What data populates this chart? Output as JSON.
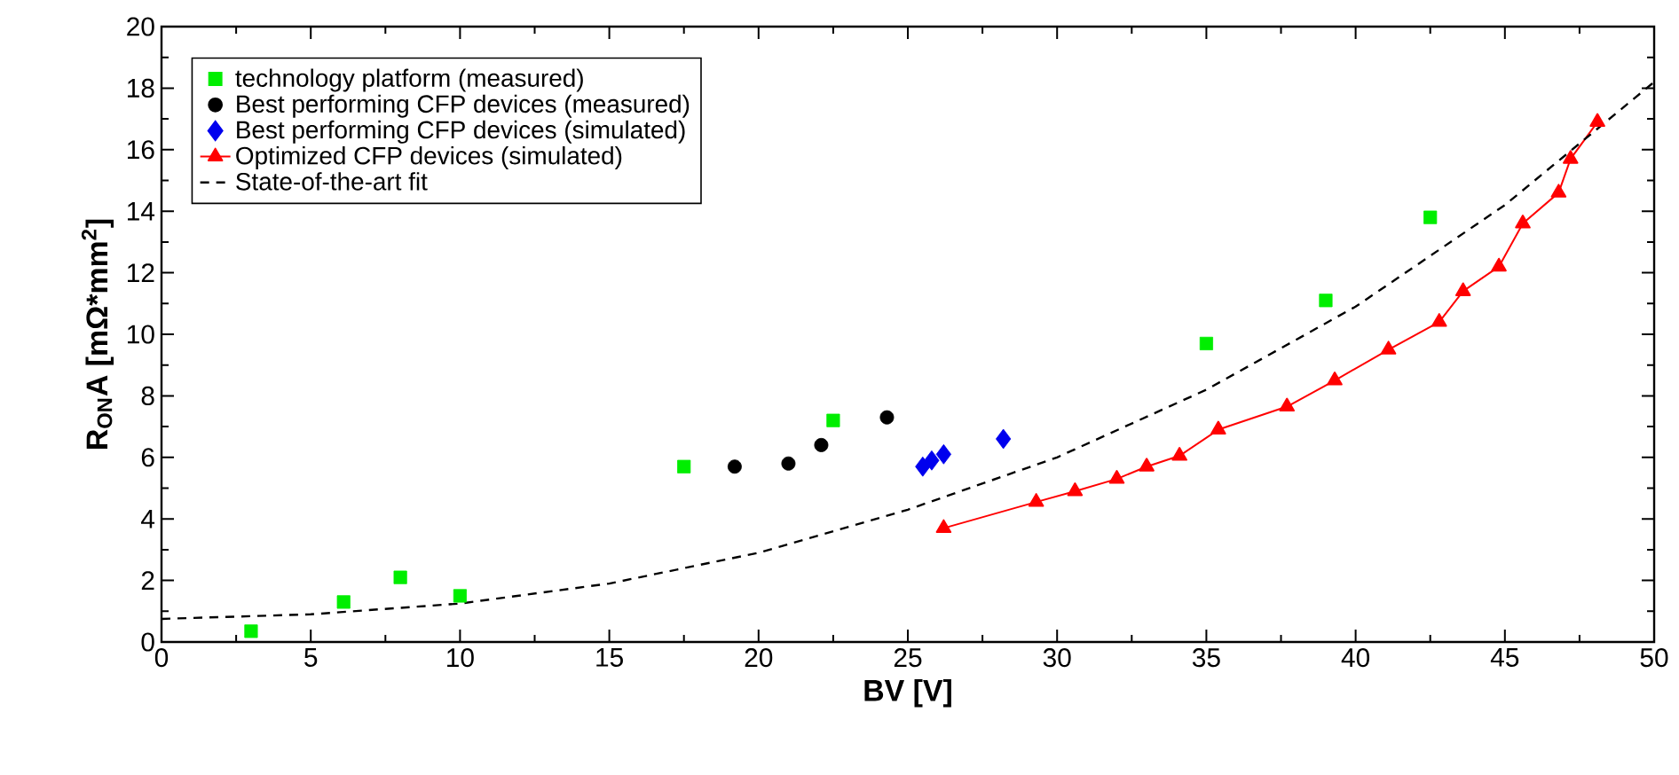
{
  "chart_data": {
    "type": "scatter",
    "xlabel": "BV [V]",
    "ylabel": "R$_{ON}$A [mΩ*mm$^{2}$]",
    "xlim": [
      0,
      50
    ],
    "ylim": [
      0,
      20
    ],
    "xticks": [
      0,
      5,
      10,
      15,
      20,
      25,
      30,
      35,
      40,
      45,
      50
    ],
    "yticks": [
      0,
      2,
      4,
      6,
      8,
      10,
      12,
      14,
      16,
      18,
      20
    ],
    "grid": false,
    "legend": "top left",
    "series": [
      {
        "name": "technology platform (measured)",
        "marker": "square",
        "color": "#00ee00",
        "x": [
          3,
          6.1,
          8,
          10,
          17.5,
          22.5,
          35,
          39,
          42.5
        ],
        "values": [
          0.35,
          1.3,
          2.1,
          1.5,
          5.7,
          7.2,
          9.7,
          11.1,
          13.8
        ]
      },
      {
        "name": "Best performing CFP devices (measured)",
        "marker": "circle",
        "color": "#000000",
        "x": [
          19.2,
          21,
          22.1,
          24.3
        ],
        "values": [
          5.7,
          5.8,
          6.4,
          7.3
        ]
      },
      {
        "name": "Best performing CFP devices (simulated)",
        "marker": "diamond",
        "color": "#0000ee",
        "x": [
          25.5,
          25.8,
          26.2,
          28.2
        ],
        "values": [
          5.7,
          5.9,
          6.1,
          6.6
        ]
      },
      {
        "name": "Optimized CFP devices (simulated)",
        "type": "line",
        "marker": "triangle",
        "line_style": "solid",
        "color": "#ff0000",
        "x": [
          26.2,
          29.3,
          30.6,
          32,
          33,
          34.1,
          35.4,
          37.7,
          39.3,
          41.1,
          42.8,
          43.6,
          44.8,
          45.6,
          46.8,
          47.2,
          48.1
        ],
        "values": [
          3.7,
          4.55,
          4.9,
          5.3,
          5.7,
          6.05,
          6.9,
          7.65,
          8.5,
          9.5,
          10.4,
          11.4,
          12.2,
          13.6,
          14.6,
          15.7,
          16.9
        ]
      },
      {
        "name": "State-of-the-art fit",
        "type": "line",
        "marker": "none",
        "line_style": "dashed",
        "color": "#000000",
        "x": [
          0,
          5,
          10,
          15,
          20,
          25,
          30,
          35,
          40,
          45,
          50
        ],
        "values": [
          0.75,
          0.9,
          1.25,
          1.9,
          2.9,
          4.3,
          6.0,
          8.2,
          10.9,
          14.2,
          18.2
        ]
      }
    ]
  }
}
